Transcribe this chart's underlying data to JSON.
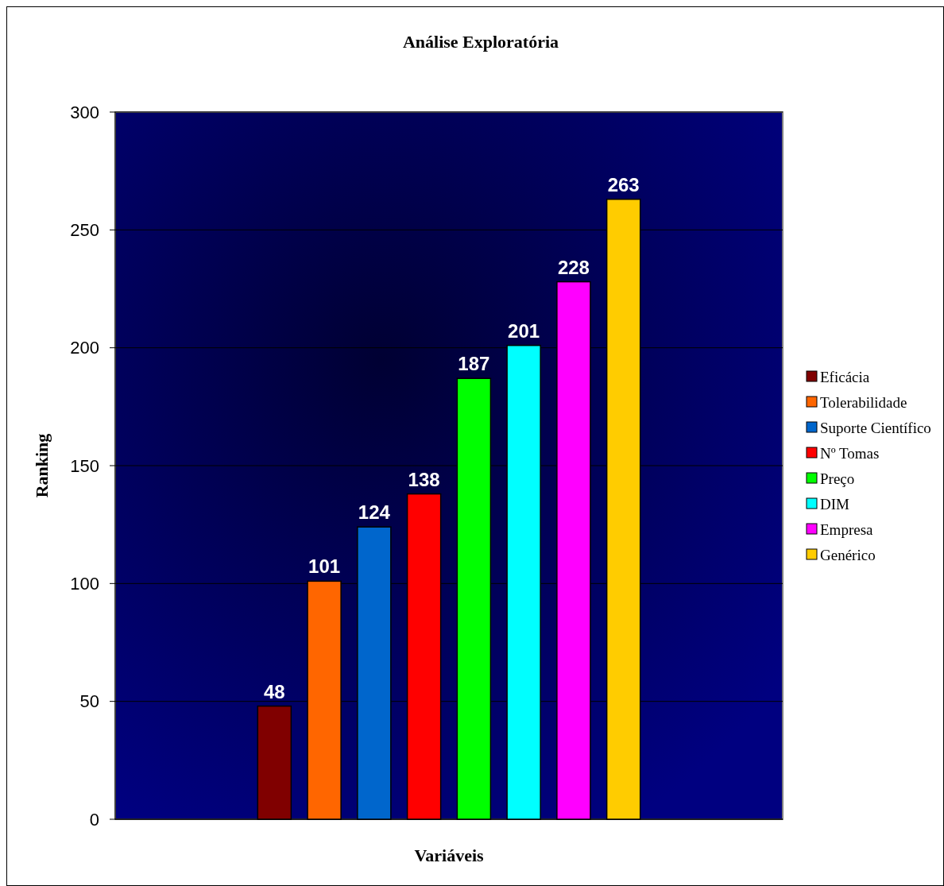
{
  "chart_data": {
    "type": "bar",
    "title": "Análise Exploratória",
    "xlabel": "Variáveis",
    "ylabel": "Ranking",
    "categories": [
      null
    ],
    "series": [
      {
        "name": "Eficácia",
        "color": "#800000",
        "values": [
          48
        ]
      },
      {
        "name": "Tolerabilidade",
        "color": "#ff6600",
        "values": [
          101
        ]
      },
      {
        "name": "Suporte Científico",
        "color": "#0066cc",
        "values": [
          124
        ]
      },
      {
        "name": "Nº Tomas",
        "color": "#ff0000",
        "values": [
          138
        ]
      },
      {
        "name": "Preço",
        "color": "#00ff00",
        "values": [
          187
        ]
      },
      {
        "name": "DIM",
        "color": "#00ffff",
        "values": [
          201
        ]
      },
      {
        "name": "Empresa",
        "color": "#ff00ff",
        "values": [
          228
        ]
      },
      {
        "name": "Genérico",
        "color": "#ffcc00",
        "values": [
          263
        ]
      }
    ],
    "ylim": [
      0,
      300
    ],
    "yticks": [
      0,
      50,
      100,
      150,
      200,
      250,
      300
    ],
    "grid": "y",
    "legend": "right",
    "data_labels": true
  }
}
